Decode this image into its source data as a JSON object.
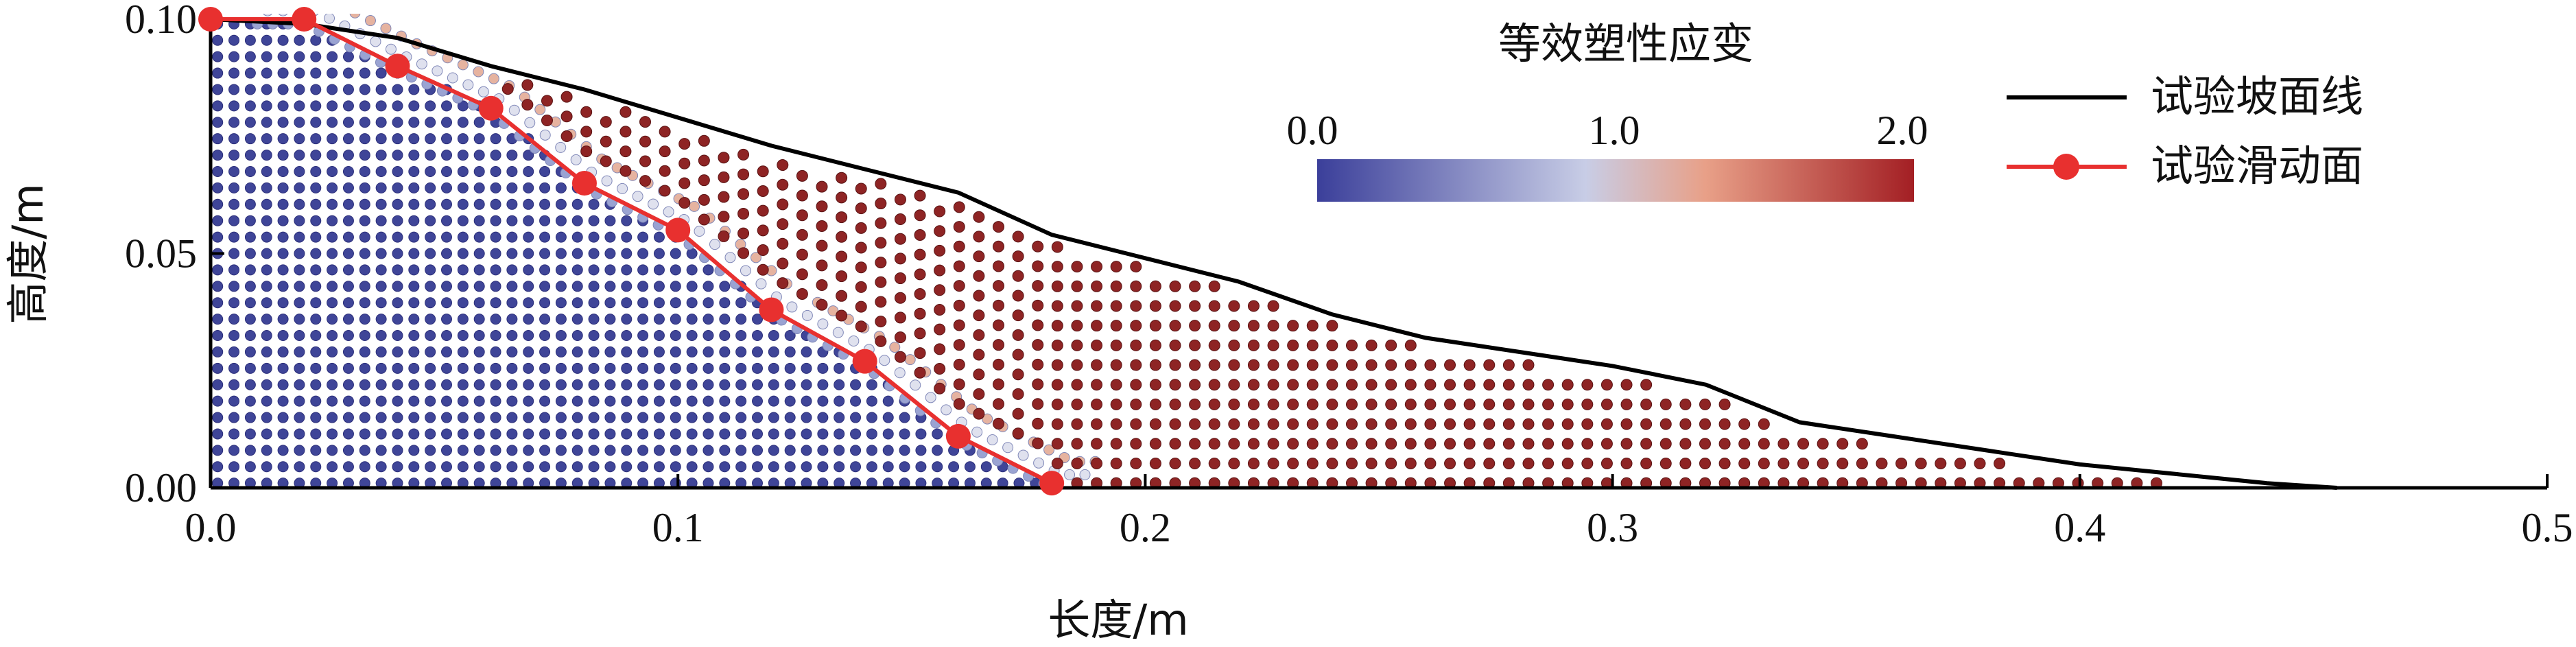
{
  "chart_data": {
    "type": "scatter",
    "xlabel": "长度/m",
    "ylabel": "高度/m",
    "xlim": [
      0.0,
      0.5
    ],
    "ylim": [
      0.0,
      0.1
    ],
    "x_ticks": [
      "0.0",
      "0.1",
      "0.2",
      "0.3",
      "0.4",
      "0.5"
    ],
    "y_ticks": [
      "0.00",
      "0.05",
      "0.10"
    ],
    "colorbar": {
      "title": "等效塑性应变",
      "ticks": [
        "0.0",
        "1.0",
        "2.0"
      ],
      "range": [
        0.0,
        2.0
      ],
      "colors": [
        "#3b3f9a",
        "#c8cde6",
        "#e8a088",
        "#a31f24"
      ]
    },
    "legend": {
      "position": "top-right",
      "entries": [
        {
          "label": "试验坡面线",
          "color": "#000000",
          "marker": "none"
        },
        {
          "label": "试验滑动面",
          "color": "#e8302f",
          "marker": "circle"
        }
      ]
    },
    "series": [
      {
        "name": "试验坡面线",
        "x": [
          0.0,
          0.02,
          0.04,
          0.06,
          0.08,
          0.1,
          0.12,
          0.14,
          0.16,
          0.18,
          0.2,
          0.22,
          0.24,
          0.26,
          0.28,
          0.3,
          0.32,
          0.34,
          0.36,
          0.38,
          0.4,
          0.42,
          0.44,
          0.455
        ],
        "y": [
          0.1,
          0.099,
          0.096,
          0.09,
          0.085,
          0.079,
          0.073,
          0.068,
          0.063,
          0.054,
          0.049,
          0.044,
          0.037,
          0.032,
          0.029,
          0.026,
          0.022,
          0.014,
          0.011,
          0.008,
          0.005,
          0.003,
          0.001,
          0.0
        ]
      },
      {
        "name": "试验滑动面",
        "x": [
          0.0,
          0.02,
          0.04,
          0.06,
          0.08,
          0.1,
          0.12,
          0.14,
          0.16,
          0.18
        ],
        "y": [
          0.1,
          0.1,
          0.09,
          0.081,
          0.065,
          0.055,
          0.038,
          0.027,
          0.011,
          0.001
        ]
      }
    ]
  }
}
